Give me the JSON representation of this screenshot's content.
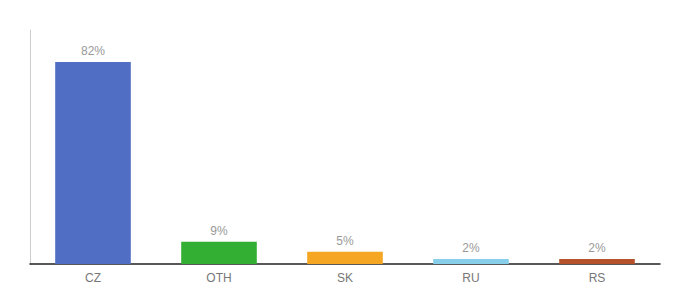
{
  "chart_data": {
    "type": "bar",
    "categories": [
      "CZ",
      "OTH",
      "SK",
      "RU",
      "RS"
    ],
    "values": [
      82,
      9,
      5,
      2,
      2
    ],
    "value_labels": [
      "82%",
      "9%",
      "5%",
      "2%",
      "2%"
    ],
    "colors": [
      "#4f6ec4",
      "#33b033",
      "#f5a623",
      "#87ceeb",
      "#b5522b"
    ],
    "ylim": [
      0,
      95
    ],
    "data_labels": true,
    "tick_labels": "x",
    "grid": false
  }
}
